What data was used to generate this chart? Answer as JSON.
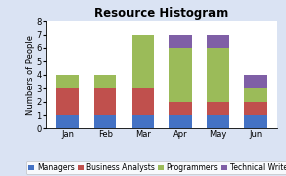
{
  "months": [
    "Jan",
    "Feb",
    "Mar",
    "Apr",
    "May",
    "Jun"
  ],
  "managers": [
    1,
    1,
    1,
    1,
    1,
    1
  ],
  "business_analysts": [
    2,
    2,
    2,
    1,
    1,
    1
  ],
  "programmers": [
    1,
    1,
    4,
    4,
    4,
    1
  ],
  "technical_writers": [
    0,
    0,
    0,
    1,
    1,
    1
  ],
  "colors": {
    "managers": "#4472C4",
    "business_analysts": "#C0504D",
    "programmers": "#9BBB59",
    "technical_writers": "#7F5FA6"
  },
  "title": "Resource Histogram",
  "ylabel": "Numbers of People",
  "ylim": [
    0,
    8
  ],
  "yticks": [
    0,
    1,
    2,
    3,
    4,
    5,
    6,
    7,
    8
  ],
  "legend_labels": [
    "Managers",
    "Business Analysts",
    "Programmers",
    "Technical Writers"
  ],
  "plot_bg_color": "#FFFFFF",
  "fig_bg_color": "#DAE3F3",
  "title_fontsize": 8.5,
  "axis_fontsize": 6,
  "tick_fontsize": 6,
  "legend_fontsize": 5.5,
  "bar_width": 0.6
}
